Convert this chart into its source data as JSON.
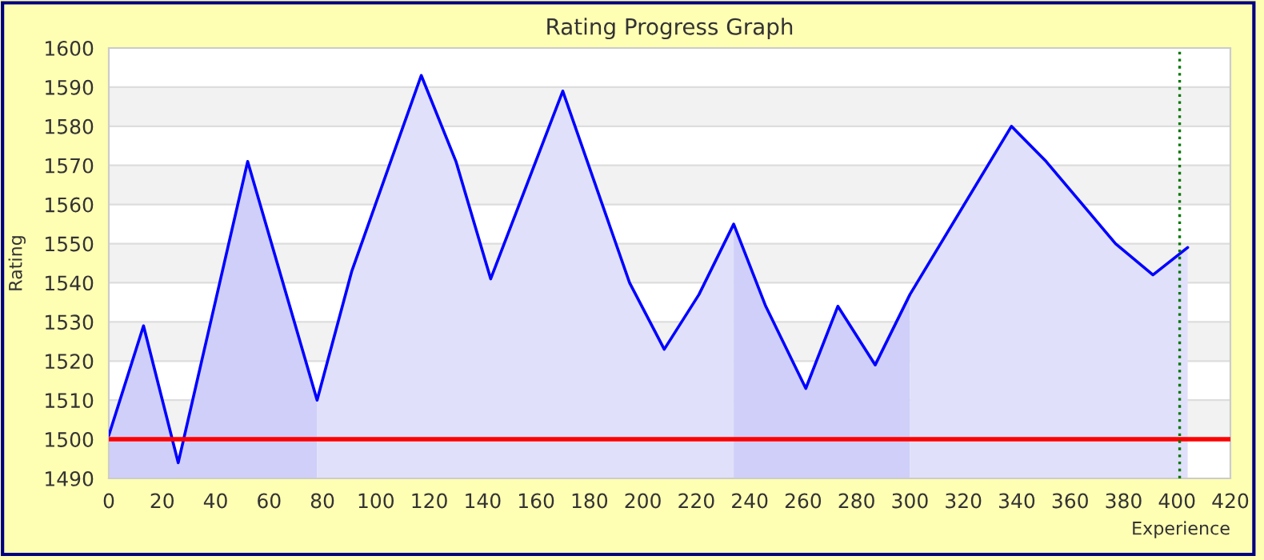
{
  "chart_data": {
    "type": "area",
    "title": "Rating Progress Graph",
    "xlabel": "Experience",
    "ylabel": "Rating",
    "series": [
      {
        "color": "#cfcffa",
        "x": [
          0,
          13,
          26,
          52,
          78
        ],
        "values": [
          1501,
          1529,
          1494,
          1571,
          1510
        ]
      },
      {
        "color": "#e0e0fa",
        "x": [
          78,
          91,
          117,
          130,
          143,
          170,
          195,
          208,
          221,
          234
        ],
        "values": [
          1510,
          1543,
          1593,
          1571,
          1541,
          1589,
          1540,
          1523,
          1537,
          1555
        ]
      },
      {
        "color": "#cfcffa",
        "x": [
          234,
          246,
          261,
          273,
          287,
          300
        ],
        "values": [
          1555,
          1534,
          1513,
          1534,
          1519,
          1537
        ]
      },
      {
        "color": "#e0e0fa",
        "x": [
          300,
          338,
          351,
          377,
          391,
          404
        ],
        "values": [
          1537,
          1580,
          1571,
          1550,
          1542,
          1549
        ]
      },
      {
        "type": "line",
        "color": "#0000ff",
        "x": [
          0,
          13,
          26,
          52,
          78,
          91,
          117,
          130,
          143,
          170,
          195,
          208,
          221,
          234,
          246,
          261,
          273,
          287,
          300,
          338,
          351,
          377,
          391,
          404
        ],
        "values": [
          1501,
          1529,
          1494,
          1571,
          1510,
          1543,
          1593,
          1571,
          1541,
          1589,
          1540,
          1523,
          1537,
          1555,
          1534,
          1513,
          1534,
          1519,
          1537,
          1580,
          1571,
          1550,
          1542,
          1549
        ]
      }
    ],
    "ref_lines": [
      {
        "axis": "y",
        "value": 1500,
        "color": "#ff0000",
        "line_style": "solid"
      },
      {
        "axis": "x",
        "value": 401,
        "color": "#007700",
        "line_style": "dotted"
      }
    ],
    "xlim": [
      0,
      420
    ],
    "ylim": [
      1490,
      1600
    ],
    "xticks": [
      0,
      20,
      40,
      60,
      80,
      100,
      120,
      140,
      160,
      180,
      200,
      220,
      240,
      260,
      280,
      300,
      320,
      340,
      360,
      380,
      400,
      420
    ],
    "yticks": [
      1490,
      1500,
      1510,
      1520,
      1530,
      1540,
      1550,
      1560,
      1570,
      1580,
      1590,
      1600
    ],
    "grid": "y",
    "legend": false
  }
}
